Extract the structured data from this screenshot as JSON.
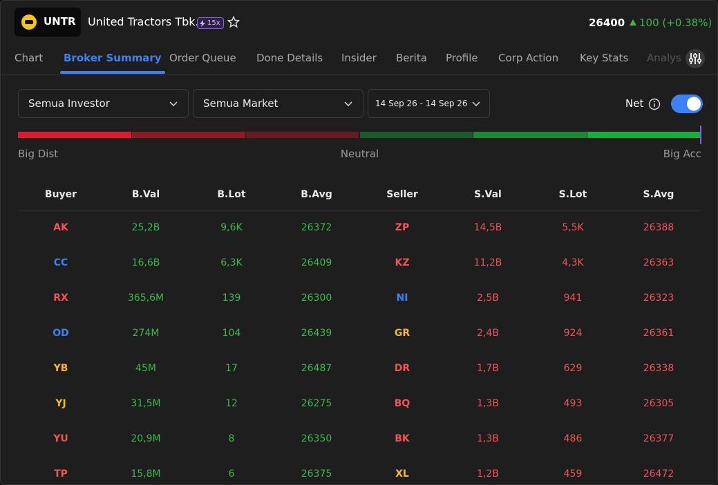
{
  "header": {
    "logo": "UNTR",
    "name": "United Tractors Tbk.",
    "badge": "15x",
    "price": "26400",
    "change": "100 (+0.38%)"
  },
  "tabs": [
    "Chart",
    "Broker Summary",
    "Order Queue",
    "Done Details",
    "Insider",
    "Berita",
    "Profile",
    "Corp Action",
    "Key Stats",
    "Analys"
  ],
  "active_tab": 1,
  "filters": {
    "investor": "Semua Investor",
    "market": "Semua Market",
    "date": "14 Sep 26 - 14 Sep 26",
    "net": "Net"
  },
  "meter": {
    "segments": [
      "#e0192f",
      "#8f1a22",
      "#6a1a1f",
      "#1d5a2a",
      "#1a8a33",
      "#14b13a"
    ],
    "labels": [
      "Big Dist",
      "Neutral",
      "Big Acc"
    ]
  },
  "table": {
    "headers": [
      "Buyer",
      "B.Val",
      "B.Lot",
      "B.Avg",
      "Seller",
      "S.Val",
      "S.Lot",
      "S.Avg"
    ],
    "code_colors": [
      [
        "#f05454",
        "#f05454"
      ],
      [
        "#3b82f6",
        "#f05454"
      ],
      [
        "#f05454",
        "#3b82f6"
      ],
      [
        "#3b82f6",
        "#f5b82e"
      ],
      [
        "#f5b82e",
        "#f05454"
      ],
      [
        "#f5b82e",
        "#f05454"
      ],
      [
        "#f05454",
        "#f05454"
      ],
      [
        "#f05454",
        "#f5b82e"
      ]
    ],
    "rows": [
      [
        "AK",
        "25,2B",
        "9,6K",
        "26372",
        "ZP",
        "14,5B",
        "5,5K",
        "26388"
      ],
      [
        "CC",
        "16,6B",
        "6,3K",
        "26409",
        "KZ",
        "11,2B",
        "4,3K",
        "26363"
      ],
      [
        "RX",
        "365,6M",
        "139",
        "26300",
        "NI",
        "2,5B",
        "941",
        "26323"
      ],
      [
        "OD",
        "274M",
        "104",
        "26439",
        "GR",
        "2,4B",
        "924",
        "26361"
      ],
      [
        "YB",
        "45M",
        "17",
        "26487",
        "DR",
        "1,7B",
        "629",
        "26338"
      ],
      [
        "YJ",
        "31,5M",
        "12",
        "26275",
        "BQ",
        "1,3B",
        "493",
        "26305"
      ],
      [
        "YU",
        "20,9M",
        "8",
        "26350",
        "BK",
        "1,3B",
        "486",
        "26377"
      ],
      [
        "TP",
        "15,8M",
        "6",
        "26375",
        "XL",
        "1,2B",
        "459",
        "26472"
      ]
    ]
  }
}
